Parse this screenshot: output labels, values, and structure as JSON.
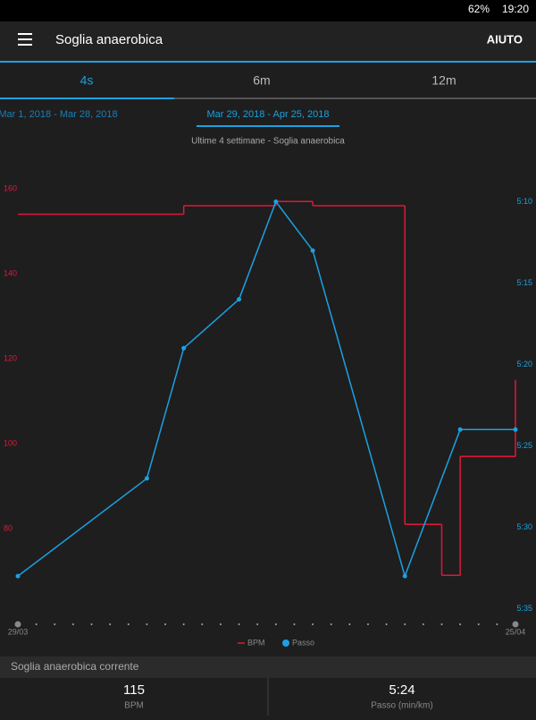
{
  "status_bar": {
    "battery": "62%",
    "time": "19:20"
  },
  "app_bar": {
    "title": "Soglia anaerobica",
    "action": "AIUTO"
  },
  "tabs": [
    "4s",
    "6m",
    "12m"
  ],
  "date_ranges": [
    "Mar 1, 2018 - Mar 28, 2018",
    "Mar 29, 2018 - Apr 25, 2018"
  ],
  "chart_data": {
    "type": "line",
    "title": "Ultime 4 settimane - Soglia anaerobica",
    "categories": [
      "29/03",
      null,
      null,
      null,
      null,
      null,
      null,
      null,
      null,
      null,
      null,
      null,
      null,
      null,
      null,
      null,
      null,
      null,
      null,
      null,
      null,
      null,
      null,
      null,
      null,
      null,
      null,
      "25/04"
    ],
    "series": [
      {
        "name": "BPM",
        "color": "#e0173a",
        "step": true,
        "values": [
          154,
          154,
          154,
          154,
          154,
          154,
          154,
          154,
          154,
          156,
          156,
          156,
          156,
          156,
          157,
          157,
          156,
          156,
          156,
          156,
          156,
          81,
          81,
          69,
          97,
          97,
          97,
          115
        ]
      },
      {
        "name": "Passo",
        "color": "#1ba1e2",
        "axis": "y2",
        "markers": true,
        "values": [
          333,
          null,
          null,
          null,
          null,
          null,
          null,
          327,
          null,
          319,
          null,
          null,
          316,
          null,
          310,
          null,
          313,
          null,
          null,
          null,
          null,
          333,
          null,
          null,
          324,
          null,
          null,
          324
        ]
      }
    ],
    "ylim": [
      60,
      165
    ],
    "yticks": [
      80,
      100,
      120,
      140,
      160
    ],
    "y2lim": [
      335.3,
      307.9
    ],
    "y2ticks": [
      {
        "value": 310,
        "label": "5:10"
      },
      {
        "value": 315,
        "label": "5:15"
      },
      {
        "value": 320,
        "label": "5:20"
      },
      {
        "value": 325,
        "label": "5:25"
      },
      {
        "value": 330,
        "label": "5:30"
      },
      {
        "value": 335,
        "label": "5:35"
      }
    ],
    "legend": "bottom"
  },
  "summary": {
    "title": "Soglia anaerobica corrente",
    "items": [
      {
        "value": "115",
        "label": "BPM"
      },
      {
        "value": "5:24",
        "label": "Passo (min/km)"
      }
    ]
  }
}
